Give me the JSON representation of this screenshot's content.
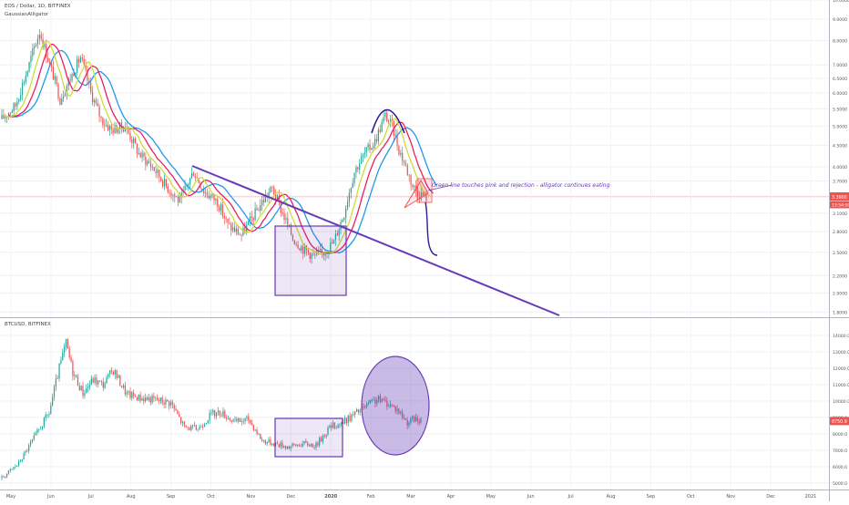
{
  "chart_data": [
    {
      "type": "candlestick",
      "title": "EOS / Dollar, 1D, BITFINEX",
      "indicator": "GaussianAlligator",
      "y_scale": "log",
      "ylim": [
        1.75,
        10.0
      ],
      "y_ticks": [
        "10.0000",
        "9.0000",
        "8.0000",
        "7.0000",
        "6.5000",
        "6.0000",
        "5.5000",
        "5.0000",
        "4.5000",
        "4.0000",
        "3.7000",
        "3.4000",
        "3.1000",
        "2.8000",
        "2.5000",
        "2.2000",
        "2.0000",
        "1.8000"
      ],
      "last_price_label": "3.3900",
      "countdown_label": "13:54:00",
      "last_price": 3.39,
      "annotation": "Green line touches pink and rejection - alligator continues eating",
      "colors": {
        "up": "#26a69a",
        "down": "#ef5350",
        "jaw": "#2196f3",
        "teeth": "#e91e63",
        "lips": "#cddc39",
        "drawing": "#673ab7"
      }
    },
    {
      "type": "candlestick",
      "title": "BTCUSD, BITFINEX",
      "y_scale": "linear",
      "ylim": [
        4600,
        15000
      ],
      "y_ticks": [
        "14000.0",
        "13000.0",
        "12000.0",
        "11000.0",
        "10000.0",
        "9000.0",
        "8000.0",
        "7000.0",
        "6000.0",
        "5000.0"
      ],
      "last_price_label": "8750.9",
      "last_price": 8750.9
    }
  ],
  "x_axis": {
    "labels": [
      "May",
      "Jun",
      "Jul",
      "Aug",
      "Sep",
      "Oct",
      "Nov",
      "Dec",
      "2020",
      "Feb",
      "Mar",
      "Apr",
      "May",
      "Jun",
      "Jul",
      "Aug",
      "Sep",
      "Oct",
      "Nov",
      "Dec",
      "2021"
    ],
    "bold_label": "2020"
  }
}
